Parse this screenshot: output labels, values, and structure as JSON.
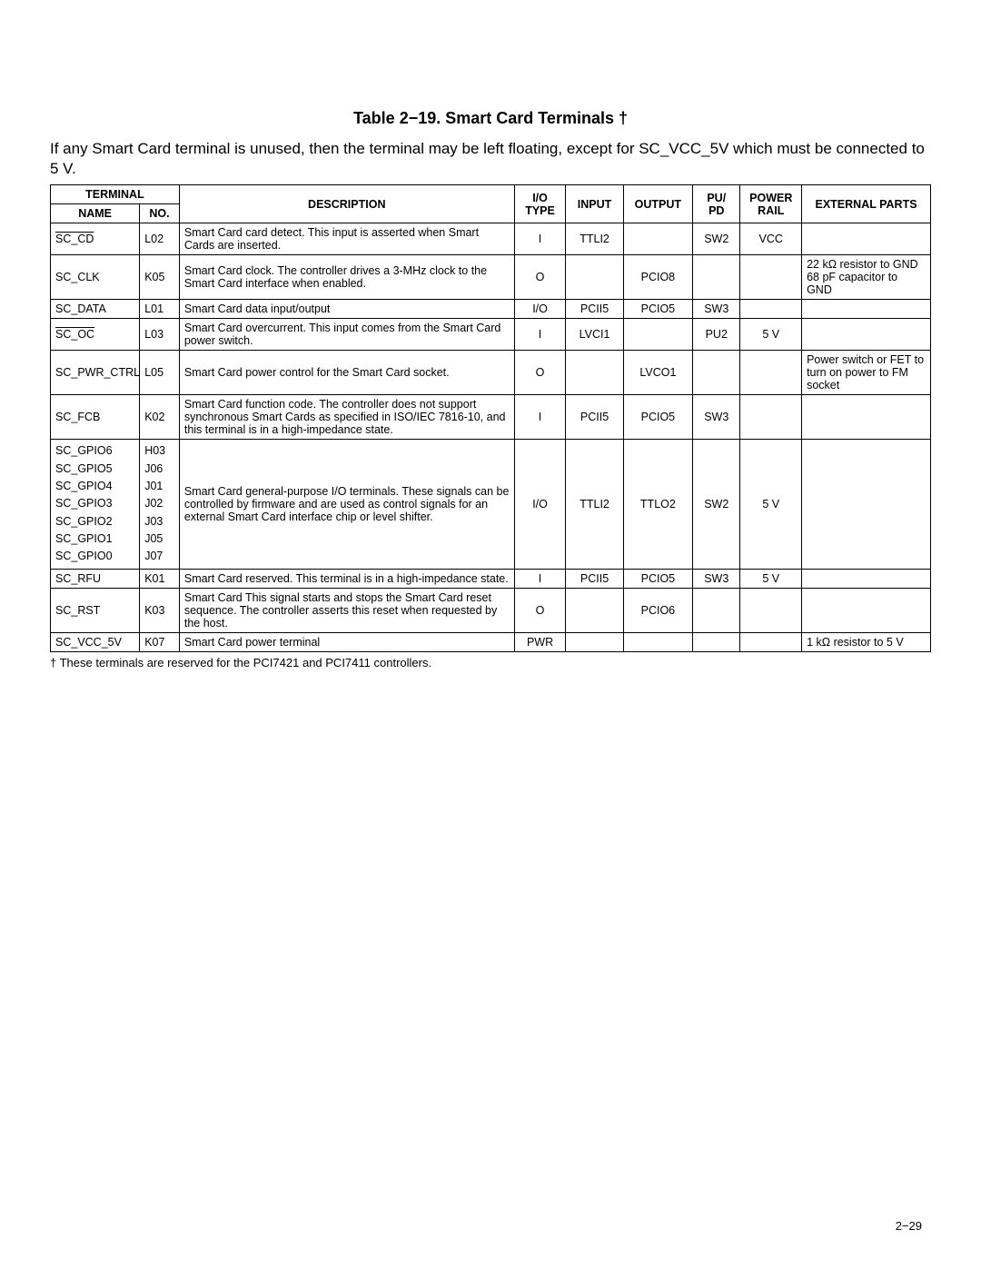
{
  "title": "Table 2−19.  Smart Card Terminals †",
  "intro": "If any Smart Card terminal is unused, then the terminal may be left floating, except for SC_VCC_5V which must be connected to 5 V.",
  "headers": {
    "terminal": "TERMINAL",
    "name": "NAME",
    "no": "NO.",
    "desc": "DESCRIPTION",
    "io": "I/O TYPE",
    "input": "INPUT",
    "output": "OUTPUT",
    "pupd": "PU/ PD",
    "power": "POWER RAIL",
    "ext": "EXTERNAL PARTS"
  },
  "rows": {
    "r0": {
      "name": "SC_CD",
      "overline": true,
      "no": "L02",
      "desc": "Smart Card card detect. This input is asserted when Smart Cards are inserted.",
      "io": "I",
      "input": "TTLI2",
      "output": "",
      "pupd": "SW2",
      "power": "VCC",
      "ext": ""
    },
    "r1": {
      "name": "SC_CLK",
      "overline": false,
      "no": "K05",
      "desc": "Smart Card clock. The controller drives a 3-MHz clock to the Smart Card interface when enabled.",
      "io": "O",
      "input": "",
      "output": "PCIO8",
      "pupd": "",
      "power": "",
      "ext": "22 kΩ resistor to GND\n68 pF capacitor to GND"
    },
    "r2": {
      "name": "SC_DATA",
      "overline": false,
      "no": "L01",
      "desc": "Smart Card data input/output",
      "io": "I/O",
      "input": "PCII5",
      "output": "PCIO5",
      "pupd": "SW3",
      "power": "",
      "ext": ""
    },
    "r3": {
      "name": "SC_OC",
      "overline": true,
      "no": "L03",
      "desc": "Smart Card overcurrent. This input comes from the Smart Card power switch.",
      "io": "I",
      "input": "LVCI1",
      "output": "",
      "pupd": "PU2",
      "power": "5 V",
      "ext": ""
    },
    "r4": {
      "name": "SC_PWR_CTRL",
      "overline": false,
      "no": "L05",
      "desc": "Smart Card power control for the Smart Card socket.",
      "io": "O",
      "input": "",
      "output": "LVCO1",
      "pupd": "",
      "power": "",
      "ext": "Power switch or FET to turn on power to FM socket"
    },
    "r5": {
      "name": "SC_FCB",
      "overline": false,
      "no": "K02",
      "desc": "Smart Card function code. The controller does not support synchronous Smart Cards as specified in ISO/IEC 7816-10, and this terminal is in a high-impedance state.",
      "io": "I",
      "input": "PCII5",
      "output": "PCIO5",
      "pupd": "SW3",
      "power": "",
      "ext": ""
    },
    "r6": {
      "names": "SC_GPIO6\nSC_GPIO5\nSC_GPIO4\nSC_GPIO3\nSC_GPIO2\nSC_GPIO1\nSC_GPIO0",
      "nos": "H03\nJ06\nJ01\nJ02\nJ03\nJ05\nJ07",
      "desc": "Smart Card general-purpose I/O terminals. These signals can be controlled by firmware and are used as control signals for an external Smart Card interface chip or level shifter.",
      "io": "I/O",
      "input": "TTLI2",
      "output": "TTLO2",
      "pupd": "SW2",
      "power": "5 V",
      "ext": ""
    },
    "r7": {
      "name": "SC_RFU",
      "overline": false,
      "no": "K01",
      "desc": "Smart Card reserved. This terminal is in a high-impedance state.",
      "io": "I",
      "input": "PCII5",
      "output": "PCIO5",
      "pupd": "SW3",
      "power": "5 V",
      "ext": ""
    },
    "r8": {
      "name": "SC_RST",
      "overline": false,
      "no": "K03",
      "desc": "Smart Card This signal starts and stops the Smart Card reset sequence. The controller asserts this reset when requested by the host.",
      "io": "O",
      "input": "",
      "output": "PCIO6",
      "pupd": "",
      "power": "",
      "ext": ""
    },
    "r9": {
      "name": "SC_VCC_5V",
      "overline": false,
      "no": "K07",
      "desc": "Smart Card power terminal",
      "io": "PWR",
      "input": "",
      "output": "",
      "pupd": "",
      "power": "",
      "ext": "1 kΩ resistor to 5 V"
    }
  },
  "footnote": "† These terminals are reserved for the PCI7421 and PCI7411 controllers.",
  "pagenum": "2−29"
}
